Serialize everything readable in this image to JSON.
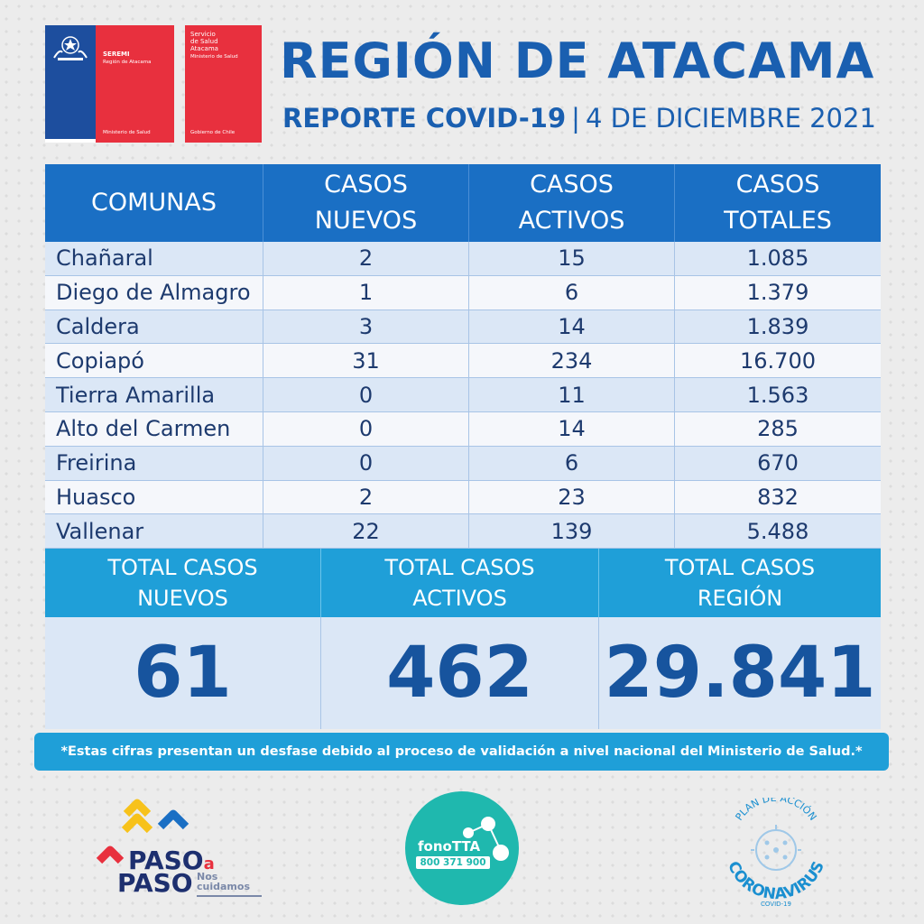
{
  "logos": {
    "seremi": {
      "title": "SEREMI",
      "region": "Región de Atacama",
      "ministry": "Ministerio de Salud"
    },
    "servicio": {
      "line1": "Servicio",
      "line2": "de Salud",
      "line3": "Atacama",
      "ministry": "Ministerio de Salud",
      "gov": "Gobierno de Chile"
    }
  },
  "header": {
    "title": "REGIÓN DE ATACAMA",
    "report": "REPORTE COVID-19",
    "separator": "|",
    "date": "4 DE DICIEMBRE 2021"
  },
  "table": {
    "headers": [
      "COMUNAS",
      "CASOS NUEVOS",
      "CASOS ACTIVOS",
      "CASOS TOTALES"
    ],
    "rows": [
      {
        "comuna": "Chañaral",
        "nuevos": "2",
        "activos": "15",
        "totales": "1.085"
      },
      {
        "comuna": "Diego de Almagro",
        "nuevos": "1",
        "activos": "6",
        "totales": "1.379"
      },
      {
        "comuna": "Caldera",
        "nuevos": "3",
        "activos": "14",
        "totales": "1.839"
      },
      {
        "comuna": "Copiapó",
        "nuevos": "31",
        "activos": "234",
        "totales": "16.700"
      },
      {
        "comuna": "Tierra Amarilla",
        "nuevos": "0",
        "activos": "11",
        "totales": "1.563"
      },
      {
        "comuna": "Alto del Carmen",
        "nuevos": "0",
        "activos": "14",
        "totales": "285"
      },
      {
        "comuna": "Freirina",
        "nuevos": "0",
        "activos": "6",
        "totales": "670"
      },
      {
        "comuna": "Huasco",
        "nuevos": "2",
        "activos": "23",
        "totales": "832"
      },
      {
        "comuna": "Vallenar",
        "nuevos": "22",
        "activos": "139",
        "totales": "5.488"
      }
    ]
  },
  "totals": [
    {
      "label_line1": "TOTAL CASOS",
      "label_line2": "NUEVOS",
      "value": "61"
    },
    {
      "label_line1": "TOTAL CASOS",
      "label_line2": "ACTIVOS",
      "value": "462"
    },
    {
      "label_line1": "TOTAL CASOS",
      "label_line2": "REGIÓN",
      "value": "29.841"
    }
  ],
  "note": "*Estas cifras presentan un desfase debido al proceso de validación a nivel nacional del Ministerio de Salud.*",
  "footer": {
    "paso": {
      "line1": "PASO",
      "a": "a",
      "line2": "PASO",
      "nos": "Nos",
      "cuidamos": "cuidamos"
    },
    "fono": {
      "name": "fonoTTA",
      "number": "800 371 900"
    },
    "plan": {
      "top": "PLAN DE ACCIÓN",
      "main": "CORONAVIRUS",
      "sub": "COVID-19"
    },
    "colors": {
      "blue": "#1a5fb0",
      "cyan": "#1f9fd8",
      "red": "#e8303e",
      "teal": "#1fb8ae"
    }
  }
}
